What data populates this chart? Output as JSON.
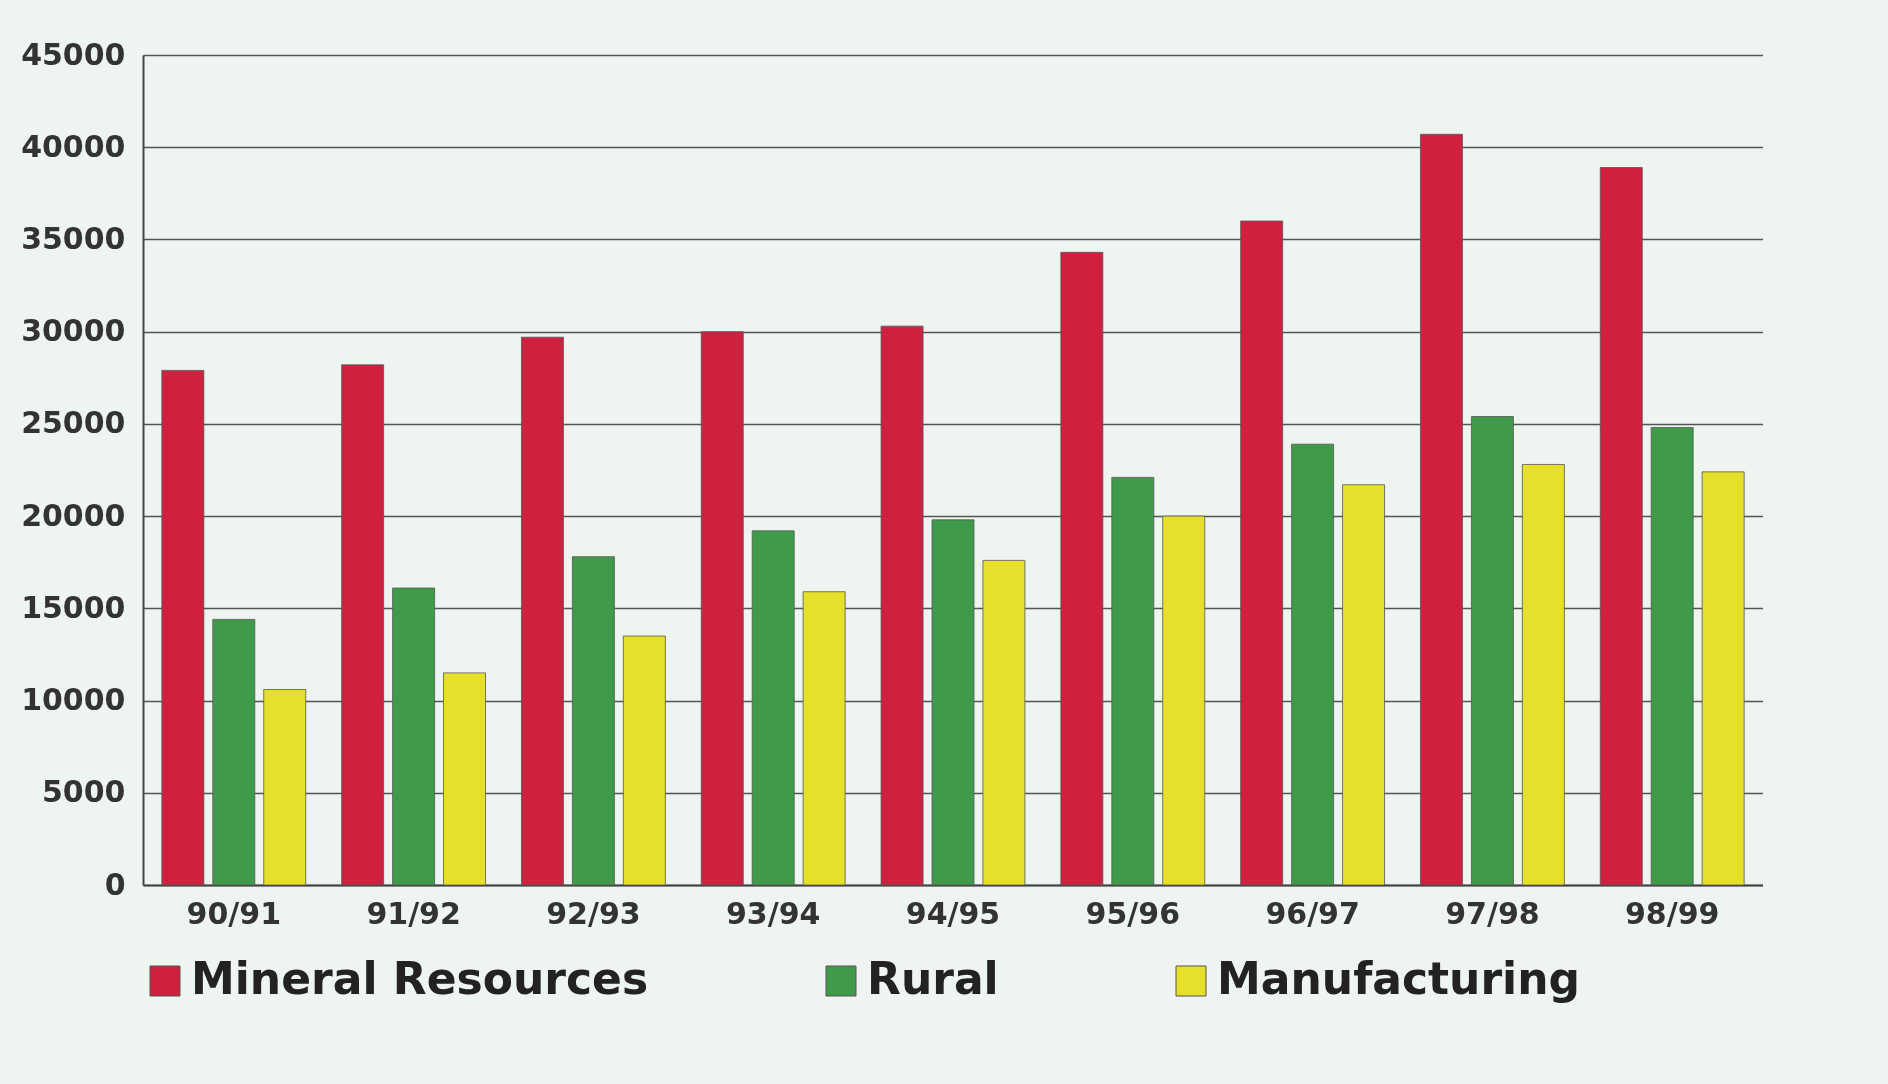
{
  "chart_data": {
    "type": "bar",
    "categories": [
      "90/91",
      "91/92",
      "92/93",
      "93/94",
      "94/95",
      "95/96",
      "96/97",
      "97/98",
      "98/99"
    ],
    "series": [
      {
        "name": "Mineral Resources",
        "color": "#cf2040",
        "values": [
          27900,
          28200,
          29700,
          30000,
          30300,
          34300,
          36000,
          40700,
          38900
        ]
      },
      {
        "name": "Rural",
        "color": "#3f9a4a",
        "values": [
          14400,
          16100,
          17800,
          19200,
          19800,
          22100,
          23900,
          25400,
          24800
        ]
      },
      {
        "name": "Manufacturing",
        "color": "#e6e02a",
        "values": [
          10600,
          11500,
          13500,
          15900,
          17600,
          20000,
          21700,
          22800,
          22400
        ]
      }
    ],
    "ylim": [
      0,
      45000
    ],
    "yticks": [
      0,
      5000,
      10000,
      15000,
      20000,
      25000,
      30000,
      35000,
      40000,
      45000
    ],
    "grid": "y",
    "legend": "bottom"
  }
}
